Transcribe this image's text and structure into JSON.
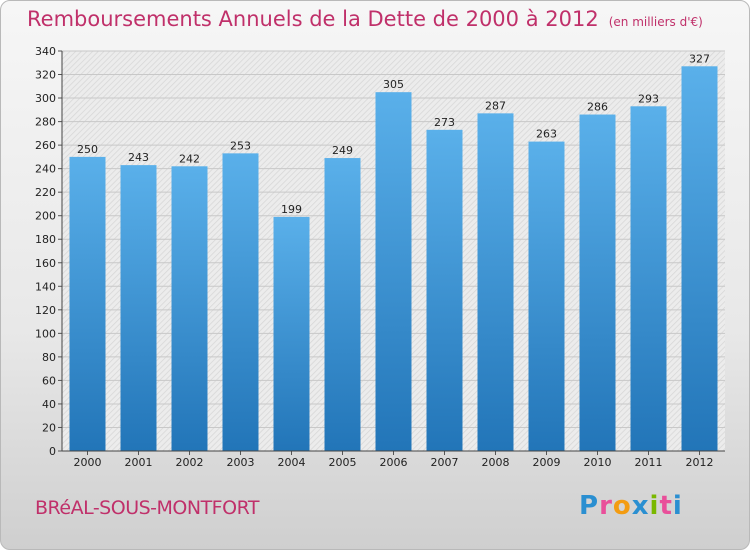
{
  "header": {
    "title": "Remboursements Annuels de la Dette de 2000 à 2012",
    "unit": "(en milliers d'€)"
  },
  "footer": {
    "city": "BRéAL-SOUS-MONTFORT",
    "logo_letters": [
      "P",
      "r",
      "o",
      "x",
      "i",
      "t",
      "i"
    ],
    "logo_colors": [
      "#2a8fd1",
      "#e94f9a",
      "#f39c12",
      "#2a8fd1",
      "#7ab800",
      "#e94f9a",
      "#2a8fd1"
    ]
  },
  "colors": {
    "bar_top": "#5ab0ea",
    "bar_bottom": "#2275b8",
    "title": "#c0306a"
  },
  "chart_data": {
    "type": "bar",
    "categories": [
      "2000",
      "2001",
      "2002",
      "2003",
      "2004",
      "2005",
      "2006",
      "2007",
      "2008",
      "2009",
      "2010",
      "2011",
      "2012"
    ],
    "values": [
      250,
      243,
      242,
      253,
      199,
      249,
      305,
      273,
      287,
      263,
      286,
      293,
      327
    ],
    "ylim": [
      0,
      340
    ],
    "yticks": [
      0,
      20,
      40,
      60,
      80,
      100,
      120,
      140,
      160,
      180,
      200,
      220,
      240,
      260,
      280,
      300,
      320,
      340
    ],
    "grid": true
  }
}
